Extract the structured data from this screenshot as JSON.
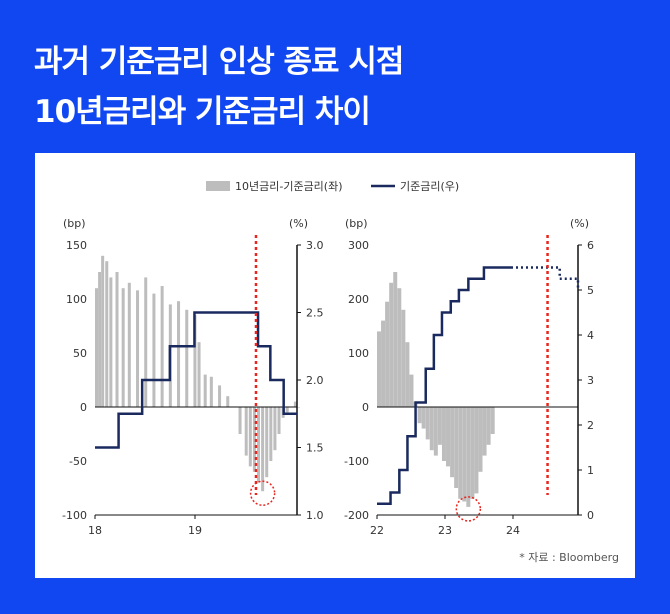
{
  "title_line1": "과거 기준금리 인상 종료 시점",
  "title_line2": "10년금리와 기준금리 차이",
  "source": "* 자료 : Bloomberg",
  "colors": {
    "background": "#1047f0",
    "bar": "#bdbdbd",
    "line": "#1a2a5e",
    "marker": "#e8251f"
  },
  "chart_data": [
    {
      "type": "bar+line",
      "legend": [
        "10년금리-기준금리(좌)",
        "기준금리(우)"
      ],
      "legend_placement": "top-center",
      "left_axis": {
        "unit": "(bp)",
        "ticks": [
          "150",
          "100",
          "50",
          "0",
          "-50",
          "-100"
        ],
        "ylim": [
          -100,
          150
        ]
      },
      "right_axis": {
        "unit": "(%)",
        "ticks": [
          "3.0",
          "2.5",
          "2.0",
          "1.5",
          "1.0"
        ],
        "ylim": [
          1.0,
          3.0
        ]
      },
      "x_ticks": [
        "18",
        "19"
      ],
      "xlim": [
        2018.0,
        2019.97
      ],
      "spread_bp": {
        "x": [
          2018.0,
          2018.03,
          2018.06,
          2018.1,
          2018.14,
          2018.2,
          2018.26,
          2018.32,
          2018.4,
          2018.48,
          2018.56,
          2018.64,
          2018.72,
          2018.8,
          2018.88,
          2018.96,
          2019.0,
          2019.06,
          2019.12,
          2019.2,
          2019.28,
          2019.34,
          2019.4,
          2019.46,
          2019.5,
          2019.54,
          2019.58,
          2019.62,
          2019.66,
          2019.7,
          2019.74,
          2019.78,
          2019.82,
          2019.86,
          2019.9,
          2019.94,
          2019.97
        ],
        "values": [
          110,
          125,
          140,
          135,
          120,
          125,
          110,
          115,
          108,
          120,
          105,
          112,
          95,
          98,
          90,
          85,
          60,
          30,
          28,
          20,
          10,
          0,
          -25,
          -45,
          -55,
          -60,
          -70,
          -78,
          -65,
          -50,
          -40,
          -25,
          -10,
          -5,
          0,
          5,
          0
        ]
      },
      "policy_rate_pct": {
        "steps": [
          {
            "x": 2018.0,
            "y": 1.5
          },
          {
            "x": 2018.23,
            "y": 1.75
          },
          {
            "x": 2018.46,
            "y": 2.0
          },
          {
            "x": 2018.73,
            "y": 2.25
          },
          {
            "x": 2018.97,
            "y": 2.5
          },
          {
            "x": 2019.59,
            "y": 2.25
          },
          {
            "x": 2019.71,
            "y": 2.0
          },
          {
            "x": 2019.84,
            "y": 1.75
          },
          {
            "x": 2019.97,
            "y": 1.75
          }
        ]
      },
      "marker_x": 2019.57
    },
    {
      "type": "bar+line",
      "left_axis": {
        "unit": "(bp)",
        "ticks": [
          "300",
          "200",
          "100",
          "0",
          "-100",
          "-200"
        ],
        "ylim": [
          -200,
          300
        ]
      },
      "right_axis": {
        "unit": "(%)",
        "ticks": [
          "6",
          "5",
          "4",
          "3",
          "2",
          "1",
          "0"
        ],
        "ylim": [
          0,
          6
        ]
      },
      "x_ticks": [
        "22",
        "23",
        "24"
      ],
      "xlim": [
        2022.0,
        2024.97
      ],
      "spread_bp": {
        "x": [
          2022.0,
          2022.06,
          2022.12,
          2022.18,
          2022.24,
          2022.3,
          2022.36,
          2022.42,
          2022.48,
          2022.54,
          2022.6,
          2022.66,
          2022.72,
          2022.78,
          2022.84,
          2022.9,
          2022.96,
          2023.02,
          2023.08,
          2023.14,
          2023.2,
          2023.26,
          2023.32,
          2023.38,
          2023.44,
          2023.5,
          2023.56,
          2023.62,
          2023.68
        ],
        "values": [
          140,
          160,
          195,
          230,
          250,
          220,
          180,
          120,
          60,
          10,
          -30,
          -40,
          -60,
          -80,
          -90,
          -70,
          -100,
          -110,
          -130,
          -150,
          -170,
          -175,
          -185,
          -170,
          -160,
          -120,
          -90,
          -70,
          -50
        ]
      },
      "policy_rate_pct": {
        "steps": [
          {
            "x": 2022.0,
            "y": 0.25
          },
          {
            "x": 2022.2,
            "y": 0.5
          },
          {
            "x": 2022.33,
            "y": 1.0
          },
          {
            "x": 2022.45,
            "y": 1.75
          },
          {
            "x": 2022.57,
            "y": 2.5
          },
          {
            "x": 2022.72,
            "y": 3.25
          },
          {
            "x": 2022.84,
            "y": 4.0
          },
          {
            "x": 2022.96,
            "y": 4.5
          },
          {
            "x": 2023.09,
            "y": 4.75
          },
          {
            "x": 2023.21,
            "y": 5.0
          },
          {
            "x": 2023.35,
            "y": 5.25
          },
          {
            "x": 2023.58,
            "y": 5.5
          },
          {
            "x": 2023.98,
            "y": 5.5
          }
        ]
      },
      "policy_rate_dotted": {
        "steps": [
          {
            "x": 2023.98,
            "y": 5.5
          },
          {
            "x": 2024.6,
            "y": 5.5
          },
          {
            "x": 2024.7,
            "y": 5.25
          },
          {
            "x": 2024.87,
            "y": 5.25
          },
          {
            "x": 2024.97,
            "y": 5.0
          }
        ]
      },
      "marker_x": 2024.52
    }
  ]
}
